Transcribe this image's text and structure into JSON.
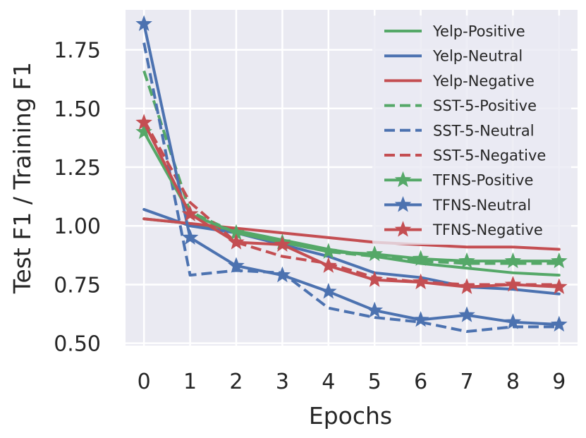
{
  "chart_data": {
    "type": "line",
    "title": "",
    "xlabel": "Epochs",
    "ylabel": "Test F1 / Training F1",
    "x": [
      0,
      1,
      2,
      3,
      4,
      5,
      6,
      7,
      8,
      9
    ],
    "xticks": [
      "0",
      "1",
      "2",
      "3",
      "4",
      "5",
      "6",
      "7",
      "8",
      "9"
    ],
    "yticks": [
      "0.50",
      "0.75",
      "1.00",
      "1.25",
      "1.50",
      "1.75"
    ],
    "ytick_values": [
      0.5,
      0.75,
      1.0,
      1.25,
      1.5,
      1.75
    ],
    "xlim": [
      -0.4,
      9.4
    ],
    "ylim": [
      0.49,
      1.92
    ],
    "grid": true,
    "legend_position": "top-right",
    "background_color": "#eaeaf2",
    "series": [
      {
        "name": "Yelp-Positive",
        "color": "#55a868",
        "style": "solid",
        "marker": "none",
        "values": [
          1.03,
          1.01,
          0.98,
          0.94,
          0.9,
          0.87,
          0.84,
          0.82,
          0.8,
          0.79
        ]
      },
      {
        "name": "Yelp-Neutral",
        "color": "#4c72b0",
        "style": "solid",
        "marker": "none",
        "values": [
          1.07,
          1.0,
          0.97,
          0.92,
          0.87,
          0.8,
          0.78,
          0.74,
          0.73,
          0.71
        ]
      },
      {
        "name": "Yelp-Negative",
        "color": "#c44e52",
        "style": "solid",
        "marker": "none",
        "values": [
          1.03,
          1.01,
          0.99,
          0.97,
          0.95,
          0.93,
          0.92,
          0.91,
          0.91,
          0.9
        ]
      },
      {
        "name": "SST-5-Positive",
        "color": "#55a868",
        "style": "dashed",
        "marker": "none",
        "values": [
          1.66,
          1.06,
          0.97,
          0.93,
          0.89,
          0.87,
          0.85,
          0.84,
          0.84,
          0.84
        ]
      },
      {
        "name": "SST-5-Neutral",
        "color": "#4c72b0",
        "style": "dashed",
        "marker": "none",
        "values": [
          1.78,
          0.79,
          0.81,
          0.8,
          0.65,
          0.61,
          0.59,
          0.55,
          0.57,
          0.57
        ]
      },
      {
        "name": "SST-5-Negative",
        "color": "#c44e52",
        "style": "dashed",
        "marker": "none",
        "values": [
          1.45,
          1.1,
          0.93,
          0.87,
          0.84,
          0.78,
          0.76,
          0.75,
          0.75,
          0.75
        ]
      },
      {
        "name": "TFNS-Positive",
        "color": "#55a868",
        "style": "solid",
        "marker": "star",
        "values": [
          1.4,
          1.05,
          0.97,
          0.93,
          0.89,
          0.88,
          0.86,
          0.85,
          0.85,
          0.85
        ]
      },
      {
        "name": "TFNS-Neutral",
        "color": "#4c72b0",
        "style": "solid",
        "marker": "star",
        "values": [
          1.86,
          0.95,
          0.83,
          0.79,
          0.72,
          0.64,
          0.6,
          0.62,
          0.59,
          0.58
        ]
      },
      {
        "name": "TFNS-Negative",
        "color": "#c44e52",
        "style": "solid",
        "marker": "star",
        "values": [
          1.44,
          1.05,
          0.93,
          0.92,
          0.83,
          0.77,
          0.76,
          0.74,
          0.75,
          0.74
        ]
      }
    ]
  }
}
